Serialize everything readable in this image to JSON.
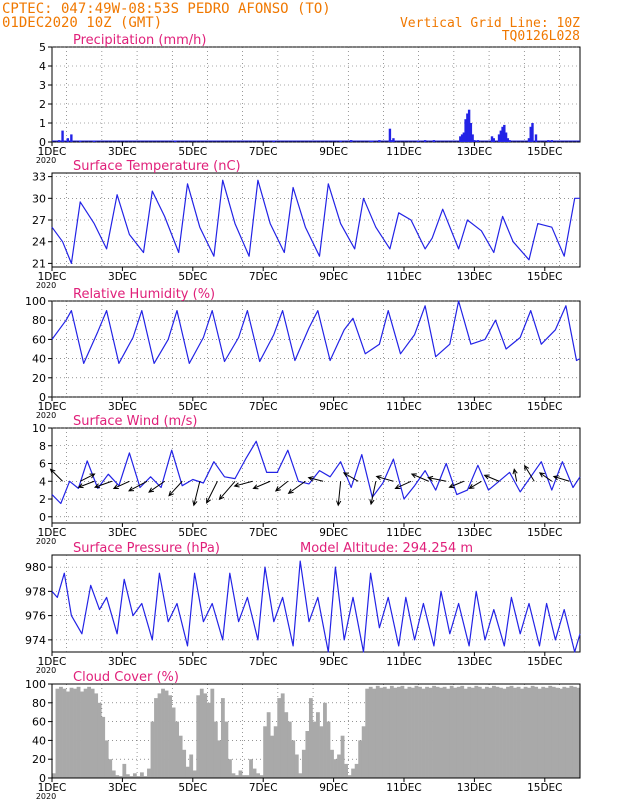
{
  "header": {
    "line1": "CPTEC:  047:49W-08:53S  PEDRO AFONSO (TO)",
    "line2_left": "01DEC2020 10Z (GMT)",
    "line2_right": "Vertical Grid Line: 10Z",
    "line3_right": "TQ0126L028"
  },
  "colors": {
    "header": "#f07800",
    "panel_title": "#e0207a",
    "series": "#2323e6",
    "cloud": "#a9a9a9",
    "wind_arrow": "#000000",
    "grid": "#555555"
  },
  "x_axis": {
    "tick_labels": [
      "1DEC",
      "3DEC",
      "5DEC",
      "7DEC",
      "9DEC",
      "11DEC",
      "13DEC",
      "15DEC"
    ],
    "year_label": "2020",
    "range_days": [
      1,
      16
    ]
  },
  "chart_data": [
    {
      "type": "bar",
      "title": "Precipitation (mm/h)",
      "ylim": [
        0,
        5
      ],
      "yticks": [
        0,
        1,
        2,
        3,
        4,
        5
      ],
      "grid": true,
      "x": [
        1.2,
        1.3,
        1.45,
        1.55,
        1.8,
        2.2,
        4.5,
        7.3,
        9.2,
        9.5,
        10.05,
        10.1,
        10.3,
        10.6,
        10.65,
        10.7,
        11.4,
        11.6,
        11.85,
        12.6,
        12.65,
        12.7,
        12.75,
        12.8,
        12.85,
        12.9,
        12.95,
        13.0,
        13.1,
        13.5,
        13.55,
        13.7,
        13.75,
        13.8,
        13.85,
        13.9,
        13.95,
        14.0,
        14.55,
        14.6,
        14.65,
        14.75,
        15.1,
        15.2
      ],
      "values": [
        0.1,
        0.6,
        0.2,
        0.4,
        0.05,
        0.05,
        0.05,
        0.05,
        0.05,
        0.1,
        0.05,
        0.05,
        0.1,
        0.7,
        0.1,
        0.2,
        0.05,
        0.1,
        0.1,
        0.3,
        0.4,
        0.5,
        1.2,
        1.5,
        1.7,
        1.0,
        0.4,
        0.1,
        0.1,
        0.3,
        0.2,
        0.4,
        0.6,
        0.8,
        0.9,
        0.5,
        0.2,
        0.1,
        0.2,
        0.8,
        1.0,
        0.4,
        0.1,
        0.1
      ]
    },
    {
      "type": "line",
      "title": "Surface Temperature (nC)",
      "ylim": [
        20.5,
        33.5
      ],
      "yticks": [
        21,
        24,
        27,
        30,
        33
      ],
      "grid": true,
      "x": [
        1.0,
        1.3,
        1.55,
        1.8,
        2.2,
        2.55,
        2.85,
        3.2,
        3.6,
        3.85,
        4.2,
        4.6,
        4.85,
        5.2,
        5.6,
        5.85,
        6.2,
        6.6,
        6.85,
        7.2,
        7.6,
        7.85,
        8.2,
        8.6,
        8.85,
        9.2,
        9.6,
        9.85,
        10.2,
        10.6,
        10.85,
        11.2,
        11.6,
        11.8,
        12.1,
        12.55,
        12.8,
        13.2,
        13.55,
        13.8,
        14.1,
        14.55,
        14.8,
        15.2,
        15.55,
        15.85,
        16.0
      ],
      "values": [
        26,
        24,
        21,
        29.5,
        26.5,
        23,
        30.5,
        25,
        22.5,
        31,
        27.5,
        22.5,
        32,
        26,
        22,
        32.5,
        26.5,
        22,
        32.5,
        26.5,
        22.5,
        31.5,
        26,
        22,
        32,
        26.5,
        23,
        30,
        26,
        23,
        28,
        27,
        23,
        24.5,
        28.5,
        23,
        27,
        25.5,
        22.5,
        27.5,
        24,
        21.5,
        26.5,
        26,
        22,
        30,
        30
      ]
    },
    {
      "type": "line",
      "title": "Relative Humidity (%)",
      "ylim": [
        0,
        100
      ],
      "yticks": [
        0,
        20,
        40,
        60,
        80,
        100
      ],
      "grid": true,
      "x": [
        1.0,
        1.4,
        1.55,
        1.9,
        2.3,
        2.55,
        2.9,
        3.3,
        3.55,
        3.9,
        4.3,
        4.55,
        4.9,
        5.3,
        5.55,
        5.9,
        6.3,
        6.55,
        6.9,
        7.3,
        7.55,
        7.9,
        8.3,
        8.55,
        8.9,
        9.3,
        9.55,
        9.9,
        10.3,
        10.55,
        10.9,
        11.3,
        11.6,
        11.9,
        12.3,
        12.55,
        12.9,
        13.3,
        13.6,
        13.9,
        14.3,
        14.6,
        14.9,
        15.3,
        15.6,
        15.9,
        16.0
      ],
      "values": [
        60,
        80,
        90,
        35,
        68,
        90,
        35,
        62,
        90,
        35,
        60,
        90,
        35,
        62,
        90,
        37,
        62,
        90,
        37,
        65,
        90,
        38,
        72,
        90,
        38,
        70,
        82,
        45,
        55,
        90,
        45,
        65,
        95,
        42,
        55,
        100,
        55,
        60,
        80,
        50,
        62,
        90,
        55,
        70,
        95,
        38,
        40
      ]
    },
    {
      "type": "line",
      "title": "Surface Wind (m/s)",
      "ylim": [
        -0.7,
        10
      ],
      "yticks": [
        0,
        2,
        4,
        6,
        8,
        10
      ],
      "grid": true,
      "x": [
        1.0,
        1.25,
        1.5,
        1.75,
        2.0,
        2.3,
        2.6,
        2.9,
        3.2,
        3.5,
        3.8,
        4.1,
        4.4,
        4.7,
        5.0,
        5.3,
        5.6,
        5.9,
        6.2,
        6.5,
        6.8,
        7.1,
        7.4,
        7.7,
        8.0,
        8.3,
        8.6,
        8.9,
        9.2,
        9.5,
        9.8,
        10.1,
        10.4,
        10.7,
        11.0,
        11.3,
        11.6,
        11.9,
        12.2,
        12.5,
        12.8,
        13.1,
        13.4,
        13.7,
        14.0,
        14.3,
        14.6,
        14.9,
        15.2,
        15.5,
        15.8,
        16.0
      ],
      "values": [
        2.5,
        1.5,
        4.0,
        3.2,
        6.3,
        3.2,
        4.8,
        3.5,
        7.2,
        3.3,
        4.5,
        3.3,
        7.5,
        3.5,
        4.2,
        3.8,
        6.2,
        4.5,
        4.3,
        6.5,
        8.5,
        5.0,
        5.0,
        7.5,
        4.0,
        3.7,
        5.2,
        4.5,
        6.2,
        3.3,
        7.0,
        2.2,
        3.8,
        6.5,
        2.0,
        3.5,
        5.2,
        3.0,
        6.0,
        2.5,
        3.0,
        5.8,
        3.0,
        4.0,
        5.0,
        2.8,
        4.5,
        6.2,
        3.0,
        6.2,
        3.3,
        4.5
      ],
      "wind_arrows": [
        {
          "day": 1.3,
          "u": -1.0,
          "v": 1.0
        },
        {
          "day": 1.8,
          "u": 1.2,
          "v": 0.6
        },
        {
          "day": 2.2,
          "u": -1.3,
          "v": -0.5
        },
        {
          "day": 2.7,
          "u": -1.4,
          "v": -0.5
        },
        {
          "day": 3.2,
          "u": -1.3,
          "v": -0.6
        },
        {
          "day": 3.7,
          "u": -1.5,
          "v": -0.8
        },
        {
          "day": 4.2,
          "u": -1.3,
          "v": -0.9
        },
        {
          "day": 4.7,
          "u": -1.1,
          "v": -1.2
        },
        {
          "day": 5.2,
          "u": -0.5,
          "v": -2.0
        },
        {
          "day": 5.7,
          "u": -0.9,
          "v": -1.8
        },
        {
          "day": 6.2,
          "u": -1.3,
          "v": -1.5
        },
        {
          "day": 6.7,
          "u": -1.5,
          "v": -0.4
        },
        {
          "day": 7.2,
          "u": -1.4,
          "v": -0.6
        },
        {
          "day": 7.7,
          "u": -1.0,
          "v": -0.8
        },
        {
          "day": 8.2,
          "u": -1.4,
          "v": -1.0
        },
        {
          "day": 8.7,
          "u": -1.2,
          "v": 0.3
        },
        {
          "day": 9.2,
          "u": -0.2,
          "v": -2.0
        },
        {
          "day": 9.7,
          "u": -1.2,
          "v": 0.7
        },
        {
          "day": 10.2,
          "u": -0.4,
          "v": -1.9
        },
        {
          "day": 10.7,
          "u": -1.4,
          "v": 0.4
        },
        {
          "day": 11.2,
          "u": -1.3,
          "v": -0.6
        },
        {
          "day": 11.7,
          "u": -1.4,
          "v": 0.6
        },
        {
          "day": 12.2,
          "u": -1.5,
          "v": 0.3
        },
        {
          "day": 12.7,
          "u": -1.2,
          "v": -0.5
        },
        {
          "day": 13.2,
          "u": -1.0,
          "v": -0.6
        },
        {
          "day": 13.7,
          "u": -1.2,
          "v": 0.5
        },
        {
          "day": 14.2,
          "u": -0.2,
          "v": 1.0
        },
        {
          "day": 14.7,
          "u": -0.8,
          "v": 1.3
        },
        {
          "day": 15.2,
          "u": -1.0,
          "v": 0.7
        },
        {
          "day": 15.7,
          "u": -1.3,
          "v": 0.4
        }
      ]
    },
    {
      "type": "line",
      "title": "Surface Pressure (hPa)",
      "annotation": "Model Altitude: 294.254 m",
      "ylim": [
        973,
        981
      ],
      "yticks": [
        974,
        976,
        978,
        980
      ],
      "grid": true,
      "x": [
        1.0,
        1.15,
        1.35,
        1.55,
        1.85,
        2.1,
        2.35,
        2.55,
        2.85,
        3.05,
        3.3,
        3.55,
        3.85,
        4.05,
        4.3,
        4.55,
        4.85,
        5.05,
        5.3,
        5.55,
        5.85,
        6.05,
        6.3,
        6.55,
        6.85,
        7.05,
        7.3,
        7.55,
        7.85,
        8.05,
        8.3,
        8.55,
        8.85,
        9.05,
        9.3,
        9.55,
        9.85,
        10.05,
        10.3,
        10.55,
        10.85,
        11.05,
        11.3,
        11.55,
        11.85,
        12.05,
        12.3,
        12.55,
        12.85,
        13.05,
        13.3,
        13.55,
        13.85,
        14.05,
        14.3,
        14.55,
        14.85,
        15.05,
        15.3,
        15.55,
        15.85,
        16.0
      ],
      "values": [
        978,
        977.5,
        979.5,
        976,
        974.5,
        978.5,
        976.5,
        977.5,
        974.5,
        979,
        976,
        977,
        974,
        979.5,
        975.5,
        977,
        973.5,
        979.5,
        975.5,
        977,
        974,
        979.5,
        975.5,
        977.5,
        974,
        980,
        975.5,
        977.5,
        973.5,
        980.5,
        975.5,
        977.5,
        973,
        980,
        974,
        977.5,
        973,
        979.5,
        975,
        977.5,
        973.5,
        977.5,
        974,
        977,
        973.5,
        978,
        974.5,
        977,
        973.5,
        978,
        974,
        976.5,
        973.5,
        977.5,
        974.5,
        977,
        973.5,
        977,
        974,
        976.5,
        973,
        974.5
      ]
    },
    {
      "type": "area",
      "title": "Cloud Cover (%)",
      "ylim": [
        0,
        100
      ],
      "yticks": [
        0,
        20,
        40,
        60,
        80,
        100
      ],
      "grid": true,
      "x": [
        1.0,
        1.1,
        1.2,
        1.3,
        1.4,
        1.5,
        1.6,
        1.7,
        1.8,
        1.9,
        2.0,
        2.1,
        2.2,
        2.3,
        2.4,
        2.5,
        2.6,
        2.7,
        2.8,
        2.9,
        3.0,
        3.1,
        3.2,
        3.3,
        3.4,
        3.5,
        3.6,
        3.7,
        3.8,
        3.9,
        4.0,
        4.1,
        4.2,
        4.3,
        4.4,
        4.5,
        4.6,
        4.7,
        4.8,
        4.9,
        5.0,
        5.1,
        5.2,
        5.3,
        5.4,
        5.5,
        5.6,
        5.7,
        5.8,
        5.9,
        6.0,
        6.1,
        6.2,
        6.3,
        6.4,
        6.5,
        6.6,
        6.7,
        6.8,
        6.9,
        7.0,
        7.1,
        7.2,
        7.3,
        7.4,
        7.5,
        7.6,
        7.7,
        7.8,
        7.9,
        8.0,
        8.1,
        8.2,
        8.3,
        8.4,
        8.5,
        8.6,
        8.7,
        8.8,
        8.9,
        9.0,
        9.1,
        9.2,
        9.3,
        9.4,
        9.5,
        9.6,
        9.7,
        9.8,
        9.9,
        10.0,
        10.1,
        10.2,
        10.3,
        10.4,
        10.5,
        10.6,
        10.7,
        10.8,
        10.9,
        11.0,
        11.1,
        11.2,
        11.3,
        11.4,
        11.5,
        11.6,
        11.7,
        11.8,
        11.9,
        12.0,
        12.1,
        12.2,
        12.3,
        12.4,
        12.5,
        12.6,
        12.7,
        12.8,
        12.9,
        13.0,
        13.1,
        13.2,
        13.3,
        13.4,
        13.5,
        13.6,
        13.7,
        13.8,
        13.9,
        14.0,
        14.1,
        14.2,
        14.3,
        14.4,
        14.5,
        14.6,
        14.7,
        14.8,
        14.9,
        15.0,
        15.1,
        15.2,
        15.3,
        15.4,
        15.5,
        15.6,
        15.7,
        15.8,
        15.9
      ],
      "values": [
        5,
        95,
        97,
        95,
        92,
        96,
        95,
        97,
        92,
        95,
        97,
        95,
        90,
        80,
        65,
        40,
        20,
        8,
        3,
        2,
        15,
        4,
        2,
        5,
        2,
        6,
        2,
        10,
        60,
        85,
        90,
        95,
        93,
        88,
        75,
        60,
        45,
        30,
        12,
        25,
        8,
        88,
        95,
        90,
        80,
        95,
        60,
        40,
        85,
        60,
        20,
        5,
        3,
        8,
        3,
        3,
        20,
        10,
        5,
        3,
        55,
        70,
        45,
        55,
        85,
        90,
        70,
        60,
        40,
        25,
        5,
        30,
        50,
        85,
        60,
        70,
        55,
        80,
        60,
        30,
        20,
        25,
        45,
        15,
        3,
        10,
        15,
        40,
        55,
        95,
        97,
        95,
        98,
        96,
        97,
        95,
        98,
        96,
        97,
        98,
        95,
        97,
        96,
        98,
        97,
        95,
        97,
        96,
        98,
        97,
        96,
        97,
        95,
        98,
        96,
        97,
        98,
        95,
        97,
        96,
        98,
        97,
        95,
        97,
        96,
        98,
        97,
        96,
        95,
        97,
        98,
        96,
        97,
        95,
        97,
        96,
        98,
        97,
        95,
        97,
        96,
        98,
        97,
        96,
        95,
        97,
        96,
        98,
        97,
        96
      ]
    }
  ]
}
